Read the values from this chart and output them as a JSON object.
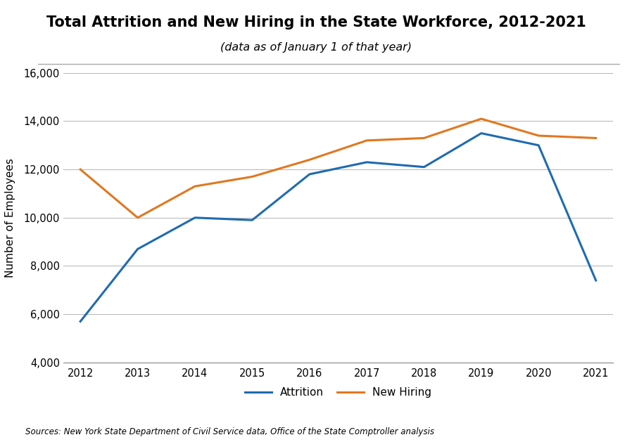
{
  "title": "Total Attrition and New Hiring in the State Workforce, 2012-2021",
  "subtitle": "(data as of January 1 of that year)",
  "ylabel": "Number of Employees",
  "source_text": "Sources: New York State Department of Civil Service data, Office of the State Comptroller analysis",
  "years": [
    2012,
    2013,
    2014,
    2015,
    2016,
    2017,
    2018,
    2019,
    2020,
    2021
  ],
  "attrition": [
    5700,
    8700,
    10000,
    9900,
    11800,
    12300,
    12100,
    13500,
    13000,
    7400
  ],
  "new_hiring": [
    12000,
    10000,
    11300,
    11700,
    12400,
    13200,
    13300,
    14100,
    13400,
    13300
  ],
  "attrition_color": "#1f6bb0",
  "new_hiring_color": "#e07820",
  "ylim_min": 4000,
  "ylim_max": 16000,
  "ytick_step": 2000,
  "background_color": "#ffffff",
  "grid_color": "#bbbbbb",
  "legend_attrition": "Attrition",
  "legend_new_hiring": "New Hiring"
}
